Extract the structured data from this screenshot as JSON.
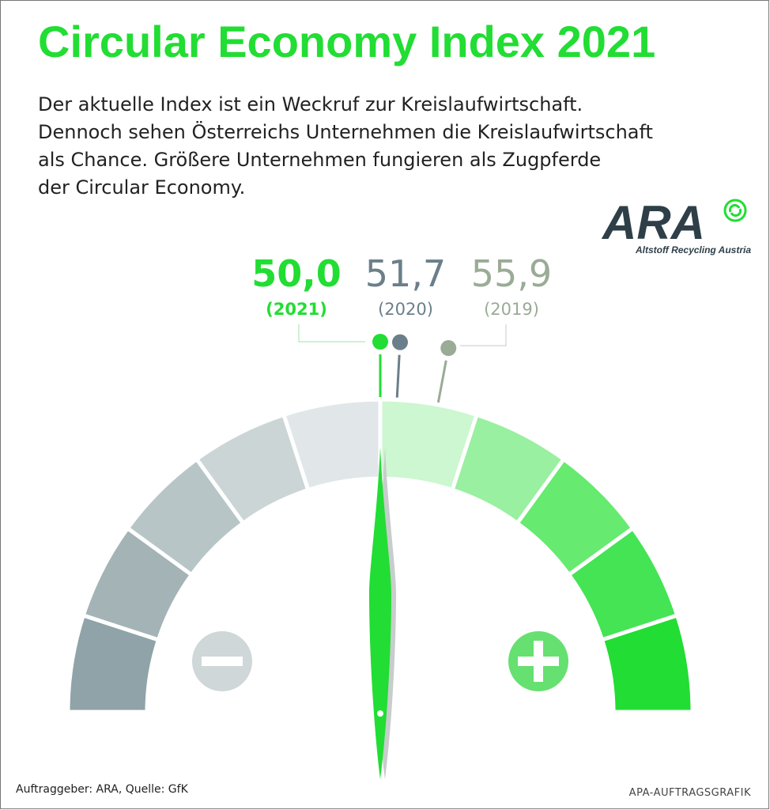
{
  "chart_data": {
    "type": "gauge",
    "title": "Circular Economy Index 2021",
    "subtitle": [
      "Der aktuelle Index ist ein Weckruf zur Kreislaufwirtschaft.",
      "Dennoch sehen Österreichs Unternehmen die Kreislaufwirtschaft",
      "als Chance. Größere Unternehmen fungieren als Zugpferde",
      "der Circular Economy."
    ],
    "logo": {
      "name": "ARA",
      "tagline": "Altstoff Recycling Austria"
    },
    "ylim": [
      0,
      100
    ],
    "series": [
      {
        "name": "(2021)",
        "color": "#22dd33",
        "values": [
          50.0
        ],
        "value_labels": [
          "50,0"
        ]
      },
      {
        "name": "(2020)",
        "color": "#6b7f8a",
        "values": [
          51.7
        ],
        "value_labels": [
          "51,7"
        ]
      },
      {
        "name": "(2019)",
        "color": "#9aab96",
        "values": [
          55.9
        ],
        "value_labels": [
          "55,9"
        ]
      }
    ],
    "source": "Auftraggeber: ARA, Quelle: GfK",
    "credit": "APA-AUFTRAGSGRAFIK"
  }
}
